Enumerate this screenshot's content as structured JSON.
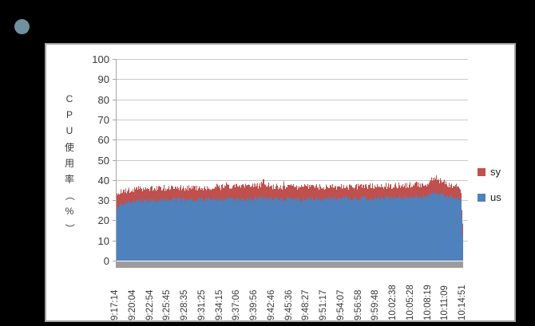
{
  "page": {
    "background_color": "#000000",
    "bullet_color": "#71909F"
  },
  "chart_data": {
    "type": "area",
    "stacked": true,
    "title": "",
    "xlabel": "",
    "ylabel": "CPU使用率(%)",
    "ylabel_chars": [
      "C",
      "P",
      "U",
      "使",
      "用",
      "率",
      "（",
      "%",
      "）"
    ],
    "ylim": [
      0,
      100
    ],
    "ytick_step": 10,
    "y_tick_labels": [
      "0",
      "10",
      "20",
      "30",
      "40",
      "50",
      "60",
      "70",
      "80",
      "90",
      "100"
    ],
    "x_tick_labels": [
      "9:17:14",
      "9:20:04",
      "9:22:54",
      "9:25:45",
      "9:28:35",
      "9:31:25",
      "9:34:15",
      "9:37:06",
      "9:39:56",
      "9:42:46",
      "9:45:36",
      "9:48:27",
      "9:51:17",
      "9:54:07",
      "9:56:58",
      "9:59:48",
      "10:02:38",
      "10:05:28",
      "10:08:19",
      "10:11:09",
      "10:14:51"
    ],
    "grid": true,
    "legend_position": "right",
    "legend": [
      {
        "label": "sy",
        "color": "#C0504D"
      },
      {
        "label": "us",
        "color": "#4F81BD"
      }
    ],
    "series_order_bottom_to_top": [
      "us",
      "sy"
    ],
    "samples_t_us_sy": [
      [
        0.0,
        25.5,
        7.0
      ],
      [
        0.008,
        27.5,
        6.5
      ],
      [
        0.025,
        29.0,
        5.8
      ],
      [
        0.06,
        29.5,
        6.0
      ],
      [
        0.12,
        30.0,
        6.0
      ],
      [
        0.2,
        30.3,
        5.8
      ],
      [
        0.3,
        30.5,
        6.0
      ],
      [
        0.41,
        30.8,
        6.2
      ],
      [
        0.425,
        31.0,
        8.2
      ],
      [
        0.445,
        30.8,
        6.0
      ],
      [
        0.55,
        30.5,
        6.0
      ],
      [
        0.65,
        30.8,
        5.8
      ],
      [
        0.75,
        31.0,
        6.0
      ],
      [
        0.85,
        31.3,
        6.0
      ],
      [
        0.9,
        31.8,
        6.3
      ],
      [
        0.918,
        33.5,
        8.0
      ],
      [
        0.932,
        33.0,
        7.0
      ],
      [
        0.955,
        32.0,
        5.8
      ],
      [
        0.98,
        31.5,
        5.5
      ],
      [
        0.995,
        30.0,
        5.5
      ],
      [
        1.0,
        12.0,
        5.0
      ]
    ],
    "noise": {
      "us_jitter": 1.2,
      "sy_jitter": 1.5,
      "spike_prob": 0.05,
      "spike_amp": 2.2,
      "seed": 1337
    },
    "colors": {
      "us": "#4F81BD",
      "sy": "#C0504D",
      "gridline": "#c9c9c9",
      "axis": "#a6a6a6",
      "x_axis_band": "#9c9c9c",
      "chart_background": "#ffffff",
      "chart_border": "#a6a6a6",
      "tick_text": "#3a3a3a"
    }
  }
}
